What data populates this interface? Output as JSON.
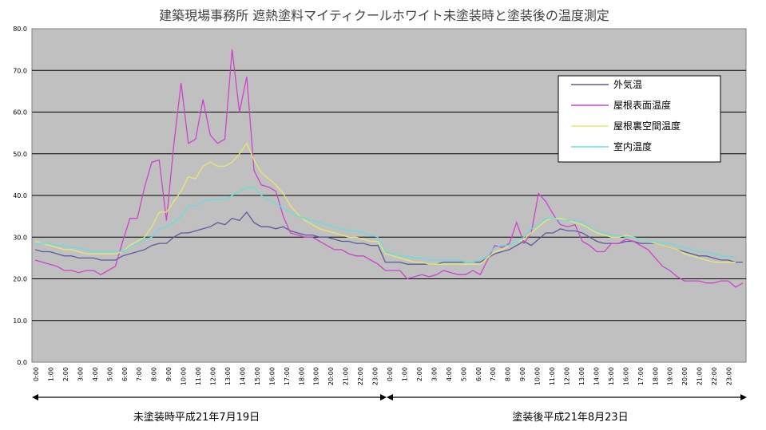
{
  "chart_data": {
    "type": "line",
    "title": "建築現場事務所 遮熱塗料マイティクールホワイト未塗装時と塗装後の温度測定",
    "ylim": [
      0,
      80
    ],
    "y_ticks": [
      "0.0",
      "10.0",
      "20.0",
      "30.0",
      "40.0",
      "50.0",
      "60.0",
      "70.0",
      "80.0"
    ],
    "x_ticks": [
      "0:00",
      "1:00",
      "2:00",
      "3:00",
      "4:00",
      "5:00",
      "6:00",
      "7:00",
      "8:00",
      "9:00",
      "10:00",
      "11:00",
      "12:00",
      "13:00",
      "14:00",
      "15:00",
      "16:00",
      "17:00",
      "18:00",
      "19:00",
      "20:00",
      "21:00",
      "22:00",
      "23:00",
      "0:00",
      "1:00",
      "2:00",
      "3:00",
      "4:00",
      "5:00",
      "6:00",
      "7:00",
      "8:00",
      "9:00",
      "10:00",
      "11:00",
      "12:00",
      "13:00",
      "14:00",
      "15:00",
      "16:00",
      "17:00",
      "18:00",
      "19:00",
      "20:00",
      "21:00",
      "22:00",
      "23:00"
    ],
    "grid": true,
    "legend_position": "top-right",
    "periods": [
      {
        "label": "未塗装時平成21年7月19日"
      },
      {
        "label": "塗装後平成21年8月23日"
      }
    ],
    "series": [
      {
        "name": "外気温",
        "color": "#5a5a9e",
        "values": [
          27,
          26.5,
          26.5,
          26,
          25.5,
          25.5,
          25,
          25,
          25,
          24.5,
          24.5,
          24.5,
          25.5,
          26,
          26.5,
          27,
          28,
          28.5,
          28.5,
          30,
          31,
          31,
          31.5,
          32,
          32.5,
          33.5,
          33,
          34.5,
          34,
          36,
          33.5,
          32.5,
          32.5,
          32,
          32.5,
          31.5,
          31,
          30.5,
          30.5,
          30,
          30,
          29.5,
          29,
          29,
          28.5,
          28.5,
          28,
          28,
          24,
          24,
          24,
          23.5,
          23.5,
          23.5,
          23.5,
          23.5,
          24,
          24,
          24,
          24,
          24,
          24,
          25,
          26,
          26.5,
          27,
          28,
          29,
          28,
          29.5,
          31,
          31,
          32,
          31.5,
          31.5,
          31,
          30,
          29,
          28.5,
          28.5,
          28.5,
          29,
          29,
          28.5,
          28.5,
          28.5,
          28,
          27.5,
          27,
          26.5,
          26,
          25.5,
          25.5,
          25,
          24.5,
          24.5,
          24,
          24
        ]
      },
      {
        "name": "屋根表面温度",
        "color": "#cc44cc",
        "values": [
          24.5,
          24,
          23.5,
          23,
          22,
          22,
          21.5,
          22,
          22,
          21,
          22,
          23,
          29,
          34.5,
          34.5,
          42,
          48,
          48.5,
          34,
          52,
          67,
          52.5,
          53.5,
          63,
          54.5,
          52.5,
          53.5,
          75,
          60,
          68.5,
          46,
          42.5,
          42,
          41,
          35,
          31,
          30.5,
          30,
          30,
          29,
          28,
          27,
          27,
          26,
          25.5,
          25.5,
          24.5,
          23.5,
          22,
          22,
          22,
          20,
          20.5,
          21,
          20.5,
          21,
          22,
          21.5,
          21,
          21,
          22,
          21,
          24.5,
          28,
          27.5,
          28.5,
          33.5,
          28.5,
          31,
          40.5,
          38.5,
          35.5,
          33,
          32.5,
          33,
          29,
          28,
          26.5,
          26.5,
          28.5,
          28.5,
          29.5,
          29,
          28,
          27,
          25,
          23,
          22,
          20.5,
          19.5,
          19.5,
          19.5,
          19,
          19,
          19.5,
          19.5,
          18,
          19
        ]
      },
      {
        "name": "屋根裏空間温度",
        "color": "#e8e870",
        "values": [
          29,
          28.5,
          28,
          27.5,
          27,
          27,
          26.5,
          26,
          26,
          26,
          26,
          26,
          26.5,
          28,
          29,
          30,
          32.5,
          36,
          36,
          38.5,
          41,
          44.5,
          44,
          47,
          48,
          47,
          47,
          48,
          50,
          52.5,
          48.5,
          45.5,
          44,
          42.5,
          40.5,
          37.5,
          35.5,
          34,
          33,
          32,
          31.5,
          31,
          30.5,
          30,
          30,
          29.5,
          29,
          29,
          26,
          25.5,
          25,
          24.5,
          24,
          24,
          23.5,
          23.5,
          23.5,
          23.5,
          23.5,
          23.5,
          23.5,
          23.5,
          25,
          26.5,
          27,
          28,
          29,
          29.5,
          31,
          32.5,
          34,
          34.5,
          34.5,
          34,
          33.5,
          33,
          32,
          31,
          30.5,
          30,
          30,
          30.5,
          30,
          29.5,
          29,
          28.5,
          28,
          27.5,
          27,
          26,
          25.5,
          25,
          24.5,
          24,
          24,
          24,
          24
        ]
      },
      {
        "name": "室内温度",
        "color": "#66dddd",
        "values": [
          28.5,
          28.5,
          28.5,
          28,
          28,
          27.5,
          27.5,
          27,
          26.5,
          26.5,
          26.5,
          26.5,
          26.5,
          27.5,
          28.5,
          29.5,
          30,
          32,
          32.5,
          33.5,
          35,
          37.5,
          37.5,
          38.5,
          39,
          39,
          39,
          40,
          41,
          42,
          42,
          40,
          39,
          38,
          37,
          36,
          35,
          34.5,
          34,
          33.5,
          33,
          32.5,
          32,
          31.5,
          31.5,
          31,
          30.5,
          30,
          26.5,
          26,
          25.5,
          25.5,
          25,
          25,
          24.5,
          24.5,
          24.5,
          24.5,
          24.5,
          24,
          24,
          24.5,
          25.5,
          27.5,
          28,
          28,
          29,
          30,
          32,
          33,
          34.5,
          34.5,
          34,
          34,
          34,
          33.5,
          32.5,
          31.5,
          31,
          30.5,
          30.5,
          30,
          30,
          29.5,
          29,
          29,
          28.5,
          28.5,
          28,
          27.5,
          27,
          26.5,
          26.5,
          26,
          25.5,
          25.5,
          25
        ]
      }
    ]
  }
}
